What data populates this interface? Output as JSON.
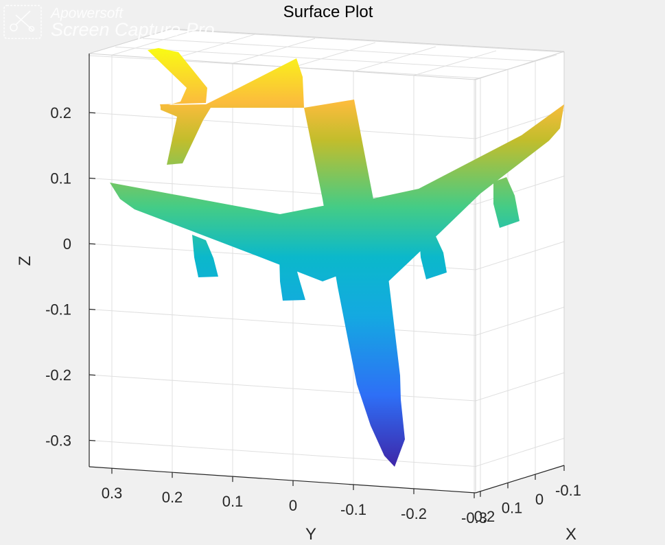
{
  "chart_data": {
    "type": "surface",
    "title": "Surface Plot",
    "xlabel": "X",
    "ylabel": "Y",
    "zlabel": "Z",
    "x_ticks": [
      "0.2",
      "0.1",
      "0",
      "-0.1"
    ],
    "y_ticks": [
      "0.3",
      "0.2",
      "0.1",
      "0",
      "-0.1",
      "-0.2",
      "-0.3"
    ],
    "z_ticks": [
      "0.2",
      "0.1",
      "0",
      "-0.1",
      "-0.2",
      "-0.3"
    ],
    "z_values": [
      0.2,
      0.1,
      0,
      -0.1,
      -0.2,
      -0.3
    ],
    "zlim": [
      -0.345,
      0.3
    ],
    "grid": true,
    "box": true,
    "colormap": "parula",
    "colormap_colors": [
      "#3e26a8",
      "#2e6ff6",
      "#0bb3d3",
      "#44cc86",
      "#c2bd2c",
      "#fbbc3c",
      "#f9fb14"
    ],
    "surface": {
      "depicts": "airplane",
      "zrange": [
        -0.34,
        0.3
      ]
    }
  },
  "watermark": {
    "brand": "Apowersoft",
    "product": "Screen Capture Pro"
  }
}
